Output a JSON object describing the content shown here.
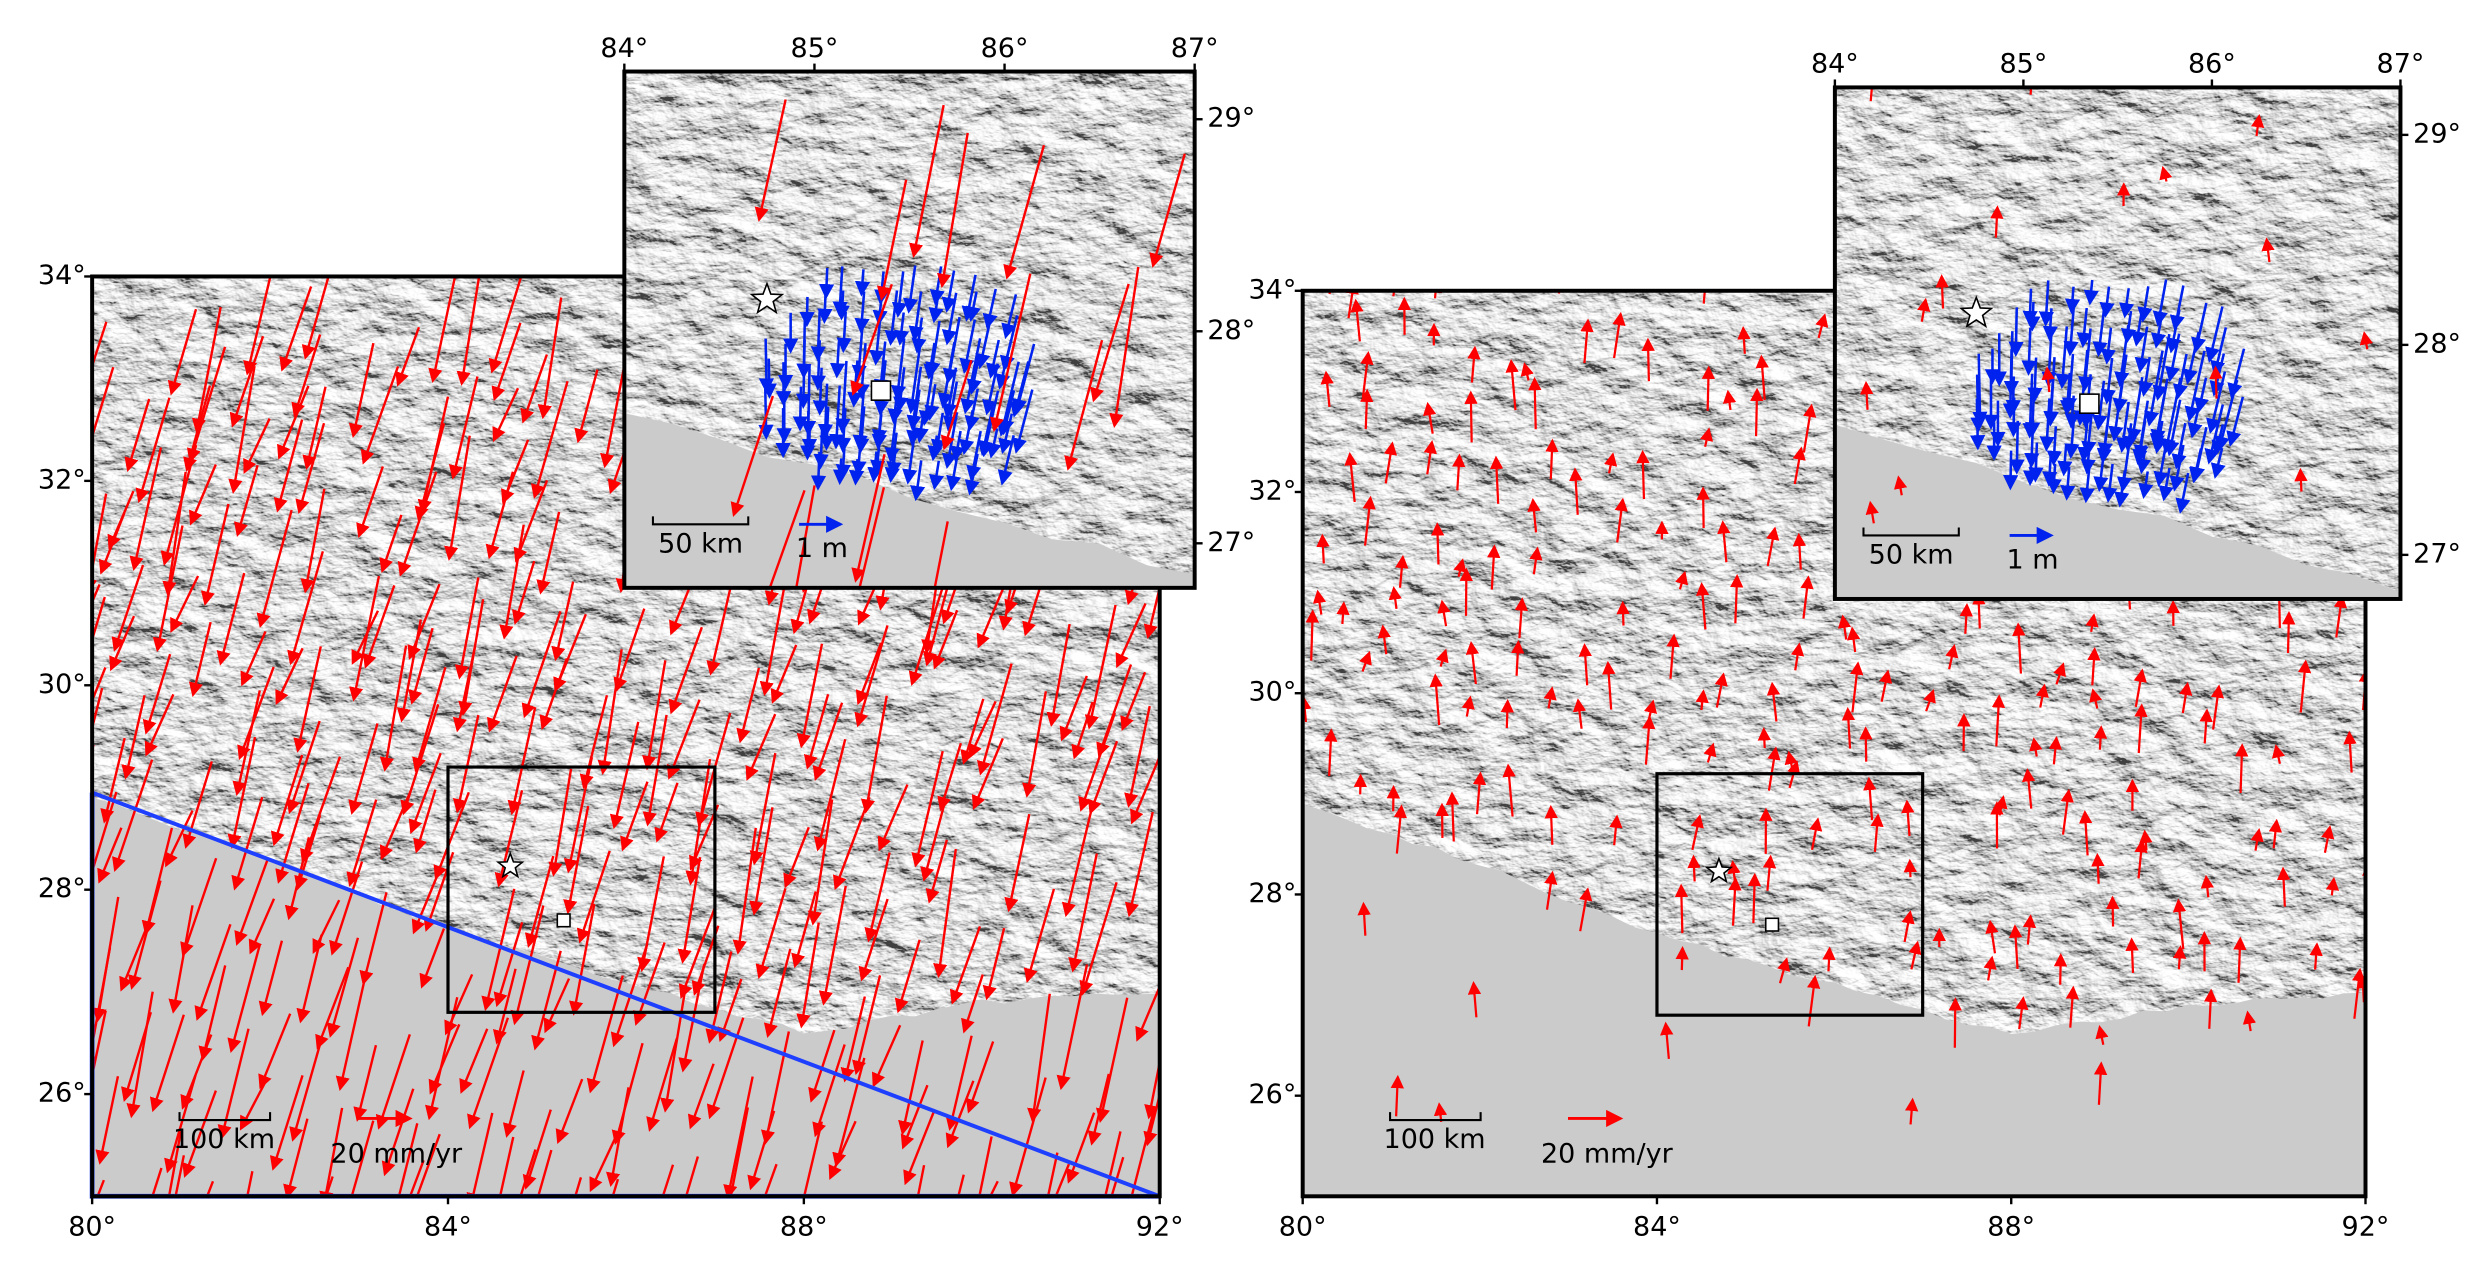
{
  "panels": [
    {
      "main": {
        "lon_ticks": [
          {
            "value": 80,
            "label": "80°"
          },
          {
            "value": 84,
            "label": "84°"
          },
          {
            "value": 88,
            "label": "88°"
          },
          {
            "value": 92,
            "label": "92°"
          }
        ],
        "lat_ticks": [
          {
            "value": 26,
            "label": "26°"
          },
          {
            "value": 28,
            "label": "28°"
          },
          {
            "value": 30,
            "label": "30°"
          },
          {
            "value": 32,
            "label": "32°"
          },
          {
            "value": 34,
            "label": "34°"
          }
        ],
        "scale_bar": "100 km",
        "vector_scale": "20 mm/yr"
      },
      "inset": {
        "lon_ticks": [
          {
            "value": 84,
            "label": "84°"
          },
          {
            "value": 85,
            "label": "85°"
          },
          {
            "value": 86,
            "label": "86°"
          },
          {
            "value": 87,
            "label": "87°"
          }
        ],
        "lat_ticks": [
          {
            "value": 27,
            "label": "27°"
          },
          {
            "value": 28,
            "label": "28°"
          },
          {
            "value": 29,
            "label": "29°"
          }
        ],
        "scale_bar": "50 km",
        "vector_scale": "1 m"
      }
    },
    {
      "main": {
        "lon_ticks": [
          {
            "value": 80,
            "label": "80°"
          },
          {
            "value": 84,
            "label": "84°"
          },
          {
            "value": 88,
            "label": "88°"
          },
          {
            "value": 92,
            "label": "92°"
          }
        ],
        "lat_ticks": [
          {
            "value": 26,
            "label": "26°"
          },
          {
            "value": 28,
            "label": "28°"
          },
          {
            "value": 30,
            "label": "30°"
          },
          {
            "value": 32,
            "label": "32°"
          },
          {
            "value": 34,
            "label": "34°"
          }
        ],
        "scale_bar": "100 km",
        "vector_scale": "20 mm/yr"
      },
      "inset": {
        "lon_ticks": [
          {
            "value": 84,
            "label": "84°"
          },
          {
            "value": 85,
            "label": "85°"
          },
          {
            "value": 86,
            "label": "86°"
          },
          {
            "value": 87,
            "label": "87°"
          }
        ],
        "lat_ticks": [
          {
            "value": 27,
            "label": "27°"
          },
          {
            "value": 28,
            "label": "28°"
          },
          {
            "value": 29,
            "label": "29°"
          }
        ],
        "scale_bar": "50 km",
        "vector_scale": "1 m"
      }
    }
  ]
}
